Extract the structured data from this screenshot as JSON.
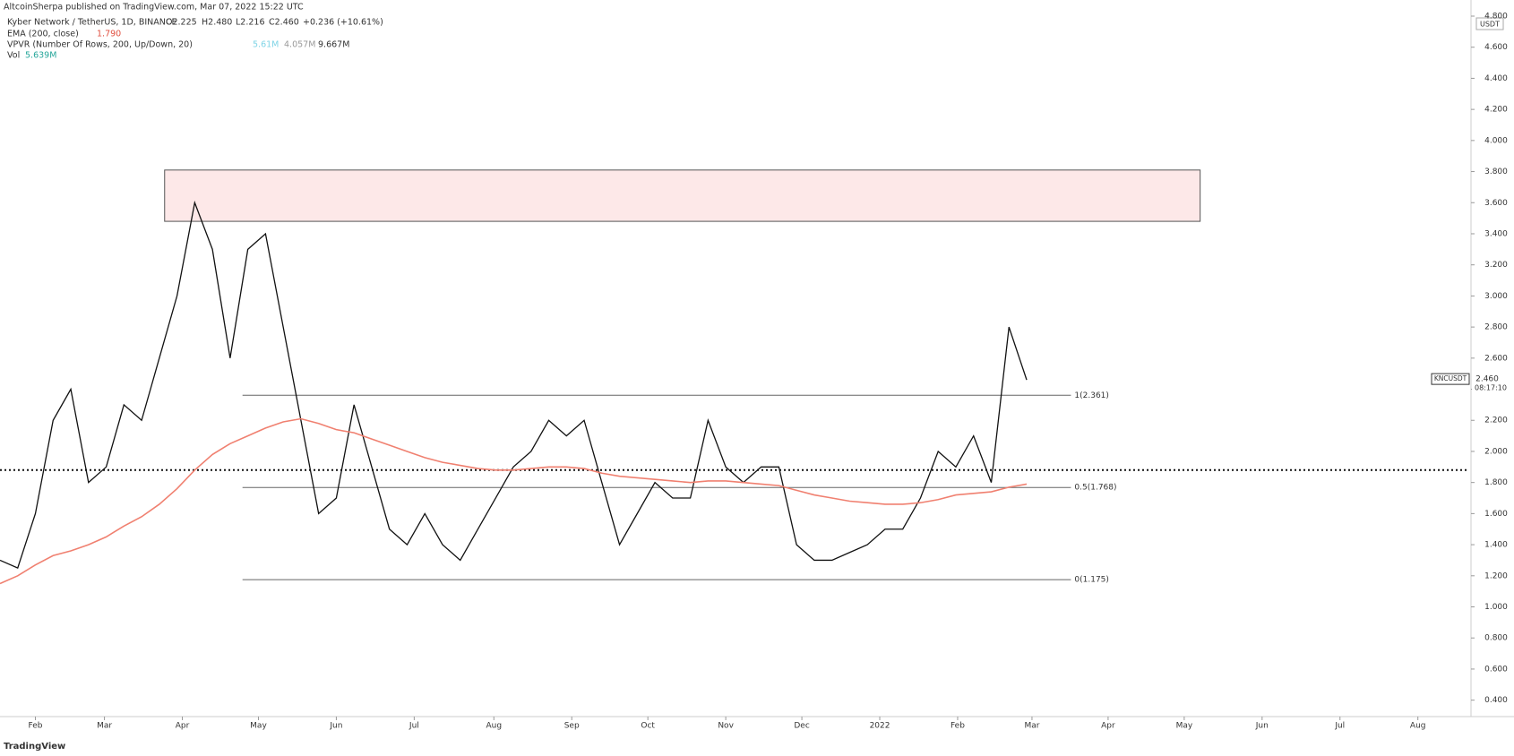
{
  "header": {
    "publisher": "AltcoinSherpa published on TradingView.com, Mar 07, 2022 15:22 UTC"
  },
  "footer": {
    "brand": "TradingView"
  },
  "legend": {
    "symbol": "Kyber Network / TetherUS, 1D, BINANCE",
    "open": "O2.225",
    "high": "H2.480",
    "low": "L2.216",
    "close": "C2.460",
    "change": "+0.236 (+10.61%)",
    "ema_name": "EMA (200, close)",
    "ema_value": "1.790",
    "vpvr_name": "VPVR (Number Of Rows, 200, Up/Down, 20)",
    "vpvr_up": "5.61M",
    "vpvr_down": "4.057M",
    "vpvr_total": "9.667M",
    "vol_name": "Vol",
    "vol_value": "5.639M"
  },
  "chart_data": {
    "type": "line",
    "currency": "USDT",
    "xlim": [
      0,
      83
    ],
    "ylim": [
      0.3,
      4.8
    ],
    "xticks": [
      {
        "value": 2,
        "label": "Feb"
      },
      {
        "value": 5.9,
        "label": "Mar"
      },
      {
        "value": 10.3,
        "label": "Apr"
      },
      {
        "value": 14.6,
        "label": "May"
      },
      {
        "value": 19.0,
        "label": "Jun"
      },
      {
        "value": 23.4,
        "label": "Jul"
      },
      {
        "value": 27.9,
        "label": "Aug"
      },
      {
        "value": 32.3,
        "label": "Sep"
      },
      {
        "value": 36.6,
        "label": "Oct"
      },
      {
        "value": 41.0,
        "label": "Nov"
      },
      {
        "value": 45.3,
        "label": "Dec"
      },
      {
        "value": 49.7,
        "label": "2022"
      },
      {
        "value": 54.1,
        "label": "Feb"
      },
      {
        "value": 58.3,
        "label": "Mar"
      },
      {
        "value": 62.6,
        "label": "Apr"
      },
      {
        "value": 66.9,
        "label": "May"
      },
      {
        "value": 71.3,
        "label": "Jun"
      },
      {
        "value": 75.7,
        "label": "Jul"
      },
      {
        "value": 80.1,
        "label": "Aug"
      }
    ],
    "yticks": [
      {
        "value": 0.4,
        "label": "0.400"
      },
      {
        "value": 0.6,
        "label": "0.600"
      },
      {
        "value": 0.8,
        "label": "0.800"
      },
      {
        "value": 1.0,
        "label": "1.000"
      },
      {
        "value": 1.2,
        "label": "1.200"
      },
      {
        "value": 1.4,
        "label": "1.400"
      },
      {
        "value": 1.6,
        "label": "1.600"
      },
      {
        "value": 1.8,
        "label": "1.800"
      },
      {
        "value": 2.0,
        "label": "2.000"
      },
      {
        "value": 2.2,
        "label": "2.200"
      },
      {
        "value": 2.4,
        "label": "2.400"
      },
      {
        "value": 2.6,
        "label": "2.600"
      },
      {
        "value": 2.8,
        "label": "2.800"
      },
      {
        "value": 3.0,
        "label": "3.000"
      },
      {
        "value": 3.2,
        "label": "3.200"
      },
      {
        "value": 3.4,
        "label": "3.400"
      },
      {
        "value": 3.6,
        "label": "3.600"
      },
      {
        "value": 3.8,
        "label": "3.800"
      },
      {
        "value": 4.0,
        "label": "4.000"
      },
      {
        "value": 4.2,
        "label": "4.200"
      },
      {
        "value": 4.4,
        "label": "4.400"
      },
      {
        "value": 4.6,
        "label": "4.600"
      },
      {
        "value": 4.8,
        "label": "4.800"
      }
    ],
    "series": [
      {
        "color": "#111111",
        "values": [
          1.3,
          1.25,
          1.6,
          2.2,
          2.4,
          1.8,
          1.9,
          2.3,
          2.2,
          2.6,
          3.0,
          3.6,
          3.3,
          2.6,
          3.3,
          3.4,
          2.8,
          2.2,
          1.6,
          1.7,
          2.3,
          1.9,
          1.5,
          1.4,
          1.6,
          1.4,
          1.3,
          1.5,
          1.7,
          1.9,
          2.0,
          2.2,
          2.1,
          2.2,
          1.8,
          1.4,
          1.6,
          1.8,
          1.7,
          1.7,
          2.2,
          1.9,
          1.8,
          1.9,
          1.9,
          1.4,
          1.3,
          1.3,
          1.35,
          1.4,
          1.5,
          1.5,
          1.7,
          2.0,
          1.9,
          2.1,
          1.8,
          2.8,
          2.46
        ]
      },
      {
        "color": "#f08070",
        "values": [
          1.15,
          1.2,
          1.27,
          1.33,
          1.36,
          1.4,
          1.45,
          1.52,
          1.58,
          1.66,
          1.76,
          1.88,
          1.98,
          2.05,
          2.1,
          2.15,
          2.19,
          2.21,
          2.18,
          2.14,
          2.12,
          2.08,
          2.04,
          2.0,
          1.96,
          1.93,
          1.91,
          1.89,
          1.88,
          1.88,
          1.89,
          1.9,
          1.9,
          1.89,
          1.86,
          1.84,
          1.83,
          1.82,
          1.81,
          1.8,
          1.81,
          1.81,
          1.8,
          1.79,
          1.78,
          1.75,
          1.72,
          1.7,
          1.68,
          1.67,
          1.66,
          1.66,
          1.67,
          1.69,
          1.72,
          1.73,
          1.74,
          1.77,
          1.79
        ]
      }
    ],
    "zone": {
      "color": "#fde8e8",
      "xlim": [
        9.3,
        67.8
      ],
      "ylim": [
        3.48,
        3.81
      ]
    },
    "fib": {
      "xlim": [
        13.7,
        60.5
      ],
      "levels": [
        {
          "value": 2.361,
          "label": "1(2.361)"
        },
        {
          "value": 1.768,
          "label": "0.5(1.768)"
        },
        {
          "value": 1.175,
          "label": "0(1.175)"
        }
      ]
    },
    "poc": 1.88,
    "price_label": {
      "symbol": "KNCUSDT",
      "value": 2.46,
      "label": "2.460",
      "countdown": "08:17:10"
    }
  }
}
